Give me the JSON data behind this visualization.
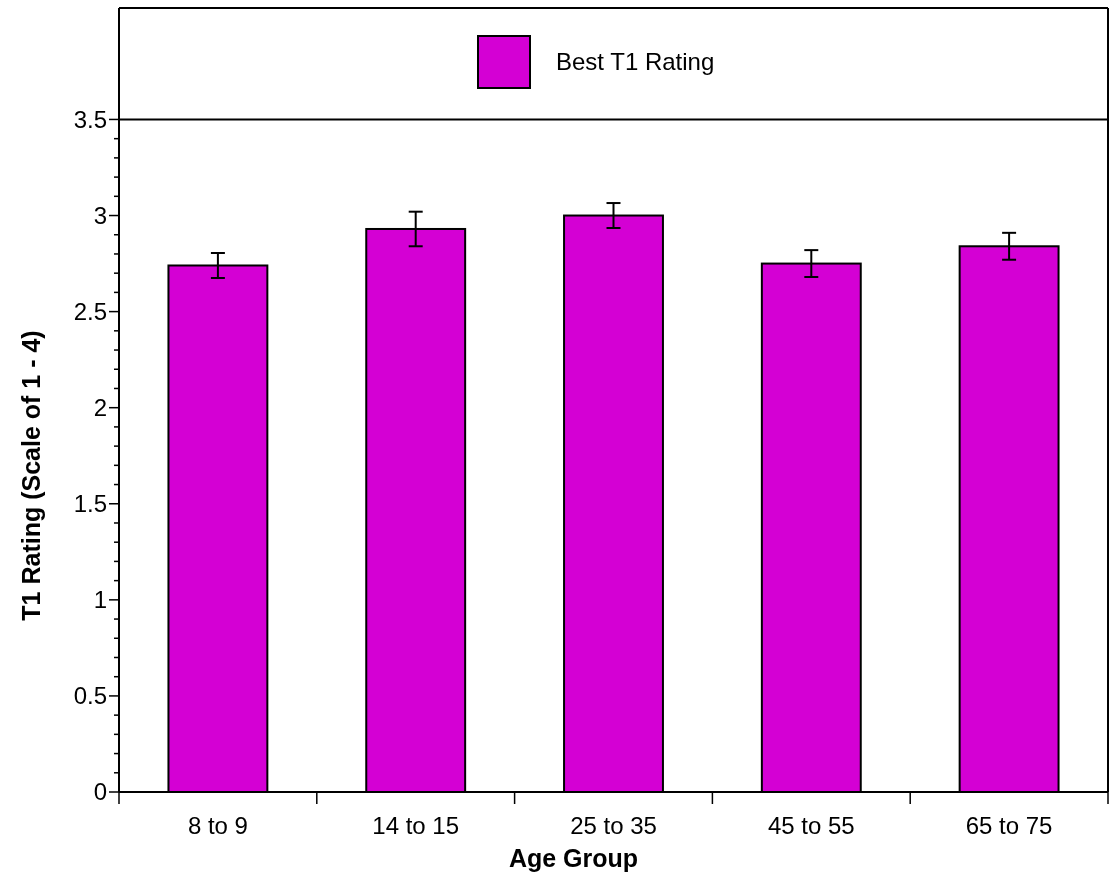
{
  "chart_data": {
    "type": "bar",
    "xlabel": "Age Group",
    "ylabel": "T1 Rating (Scale of 1 - 4)",
    "categories": [
      "8 to 9",
      "14 to 15",
      "25 to 35",
      "45 to 55",
      "65 to 75"
    ],
    "series": [
      {
        "name": "Best T1 Rating",
        "color": "#d400d4",
        "values": [
          2.74,
          2.93,
          3.0,
          2.75,
          2.84
        ],
        "errors": [
          0.065,
          0.09,
          0.065,
          0.07,
          0.07
        ]
      }
    ],
    "ylim": [
      0,
      4.08
    ],
    "ref_lines": [
      {
        "axis": "y",
        "value": 3.5,
        "color": "#000000"
      }
    ],
    "yticks": [
      0,
      {
        "value": 0.1,
        "label": null
      },
      {
        "value": 0.2,
        "label": null
      },
      {
        "value": 0.3,
        "label": null
      },
      {
        "value": 0.4,
        "label": null
      },
      0.5,
      {
        "value": 0.6,
        "label": null
      },
      {
        "value": 0.7,
        "label": null
      },
      {
        "value": 0.8,
        "label": null
      },
      {
        "value": 0.9,
        "label": null
      },
      1,
      {
        "value": 1.1,
        "label": null
      },
      {
        "value": 1.2,
        "label": null
      },
      {
        "value": 1.3,
        "label": null
      },
      {
        "value": 1.4,
        "label": null
      },
      1.5,
      {
        "value": 1.6,
        "label": null
      },
      {
        "value": 1.7,
        "label": null
      },
      {
        "value": 1.8,
        "label": null
      },
      {
        "value": 1.9,
        "label": null
      },
      2,
      {
        "value": 2.1,
        "label": null
      },
      {
        "value": 2.2,
        "label": null
      },
      {
        "value": 2.3,
        "label": null
      },
      {
        "value": 2.4,
        "label": null
      },
      2.5,
      {
        "value": 2.6,
        "label": null
      },
      {
        "value": 2.7,
        "label": null
      },
      {
        "value": 2.8,
        "label": null
      },
      {
        "value": 2.9,
        "label": null
      },
      3,
      {
        "value": 3.1,
        "label": null
      },
      {
        "value": 3.2,
        "label": null
      },
      {
        "value": 3.3,
        "label": null
      },
      {
        "value": 3.4,
        "label": null
      },
      3.5
    ],
    "grid": false,
    "legend": "top"
  }
}
